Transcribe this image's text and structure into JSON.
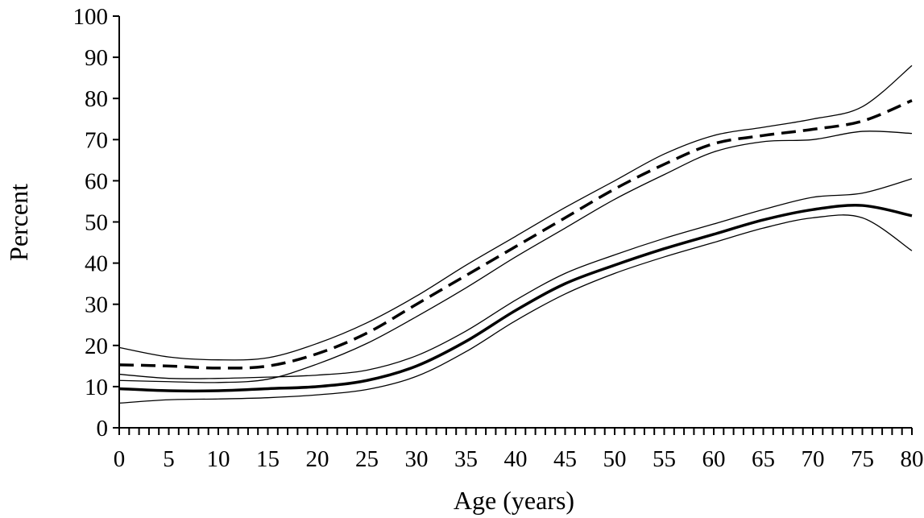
{
  "chart_data": {
    "type": "line",
    "xlabel": "Age (years)",
    "ylabel": "Percent",
    "xlim": [
      0,
      80
    ],
    "ylim": [
      0,
      100
    ],
    "x_ticks": [
      0,
      5,
      10,
      15,
      20,
      25,
      30,
      35,
      40,
      45,
      50,
      55,
      60,
      65,
      70,
      75,
      80
    ],
    "y_ticks": [
      0,
      10,
      20,
      30,
      40,
      50,
      60,
      70,
      80,
      90,
      100
    ],
    "x_minor_step": 1,
    "grid": false,
    "legend": "none",
    "x": [
      0,
      5,
      10,
      15,
      20,
      25,
      30,
      35,
      40,
      45,
      50,
      55,
      60,
      65,
      70,
      75,
      80
    ],
    "series": [
      {
        "style": "dashed",
        "values": [
          15.3,
          15.0,
          14.5,
          15.0,
          18.0,
          23.0,
          30.0,
          37.0,
          44.0,
          51.0,
          58.0,
          64.0,
          69.0,
          71.0,
          72.5,
          74.5,
          79.5
        ],
        "lower": [
          11.5,
          11.2,
          11.0,
          11.8,
          15.5,
          20.5,
          27.0,
          34.0,
          41.5,
          48.5,
          55.5,
          61.5,
          67.0,
          69.5,
          70.0,
          72.0,
          71.5
        ],
        "upper": [
          19.5,
          17.2,
          16.5,
          17.0,
          20.5,
          25.5,
          32.0,
          39.5,
          46.5,
          53.5,
          60.0,
          66.5,
          71.0,
          73.0,
          75.0,
          78.0,
          88.0
        ]
      },
      {
        "style": "solid",
        "values": [
          9.5,
          9.0,
          9.0,
          9.5,
          10.0,
          11.5,
          15.0,
          21.0,
          28.5,
          35.0,
          39.5,
          43.5,
          47.0,
          50.5,
          53.0,
          54.0,
          51.5
        ],
        "lower": [
          6.0,
          6.8,
          7.0,
          7.3,
          8.0,
          9.3,
          12.5,
          18.5,
          26.0,
          32.5,
          37.5,
          41.5,
          45.0,
          48.5,
          51.0,
          51.0,
          43.0
        ],
        "upper": [
          13.0,
          12.0,
          12.0,
          12.3,
          12.8,
          14.0,
          17.5,
          23.5,
          31.0,
          37.5,
          42.0,
          46.0,
          49.5,
          53.0,
          56.0,
          57.0,
          60.5
        ]
      }
    ]
  }
}
